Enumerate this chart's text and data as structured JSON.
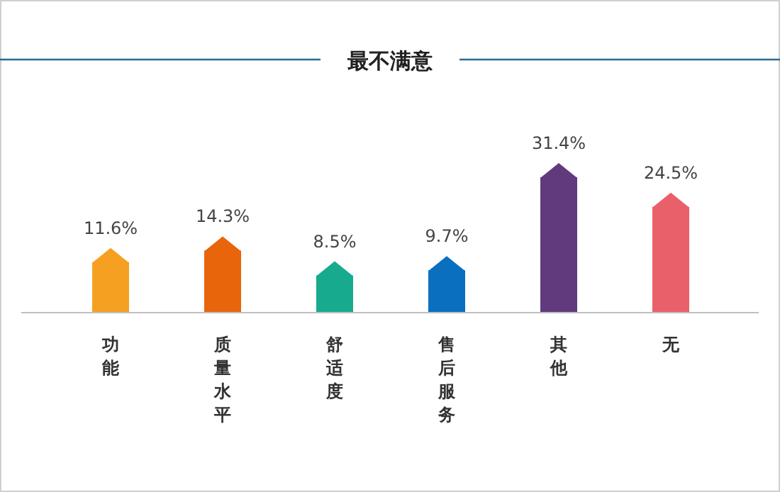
{
  "chart_data": {
    "type": "bar",
    "title": "最不满意",
    "categories": [
      "功能",
      "质量水平",
      "舒适度",
      "售后服务",
      "其他",
      "无"
    ],
    "values": [
      11.6,
      14.3,
      8.5,
      9.7,
      31.4,
      24.5
    ],
    "colors": [
      "#f5a021",
      "#e8650c",
      "#17aa8e",
      "#0b6fc0",
      "#613a7d",
      "#e9606a"
    ],
    "value_labels": [
      "11.6%",
      "14.3%",
      "8.5%",
      "9.7%",
      "31.4%",
      "24.5%"
    ]
  }
}
